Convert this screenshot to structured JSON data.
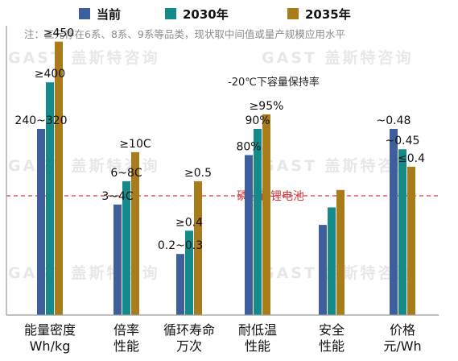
{
  "chart_data": {
    "type": "bar",
    "legend_position": "top",
    "note": "注：三元存在6系、8系、9系等品类，现状取中间值或量产规模应用水平",
    "watermark": "GAST 盖斯特咨询",
    "annotation": "-20℃下容量保持率",
    "reference_line": {
      "label": "磷酸铁锂电池",
      "color": "#d63b3b"
    },
    "categories": [
      [
        "能量密度",
        "Wh/kg"
      ],
      [
        "倍率",
        "性能"
      ],
      [
        "循环寿命",
        "万次"
      ],
      [
        "耐低温",
        "性能"
      ],
      [
        "安全",
        "性能"
      ],
      [
        "价格",
        "元/Wh"
      ]
    ],
    "series": [
      {
        "name": "当前",
        "color": "#3e5f9c",
        "values": [
          0.64,
          0.38,
          0.21,
          0.55,
          0.31,
          0.64
        ]
      },
      {
        "name": "2030年",
        "color": "#138b8b",
        "values": [
          0.8,
          0.46,
          0.29,
          0.64,
          0.37,
          0.57
        ]
      },
      {
        "name": "2035年",
        "color": "#a87c1b",
        "values": [
          0.94,
          0.56,
          0.46,
          0.69,
          0.43,
          0.51
        ]
      }
    ],
    "data_labels": [
      {
        "text": "240~320",
        "category": 0,
        "series": 0
      },
      {
        "text": "≥400",
        "category": 0,
        "series": 1
      },
      {
        "text": "≥450",
        "category": 0,
        "series": 2
      },
      {
        "text": "3~4C",
        "category": 1,
        "series": 0
      },
      {
        "text": "6~8C",
        "category": 1,
        "series": 1
      },
      {
        "text": "≥10C",
        "category": 1,
        "series": 2
      },
      {
        "text": "0.2~0.3",
        "category": 2,
        "series": 0
      },
      {
        "text": "≥0.4",
        "category": 2,
        "series": 1
      },
      {
        "text": "≥0.5",
        "category": 2,
        "series": 2
      },
      {
        "text": "80%",
        "category": 3,
        "series": 0
      },
      {
        "text": "90%",
        "category": 3,
        "series": 1
      },
      {
        "text": "≥95%",
        "category": 3,
        "series": 2
      },
      {
        "text": "~0.48",
        "category": 5,
        "series": 0
      },
      {
        "text": "~0.45",
        "category": 5,
        "series": 1
      },
      {
        "text": "≤0.4",
        "category": 5,
        "series": 2
      }
    ],
    "reference_value": 0.41,
    "ylim": [
      0,
      1
    ]
  }
}
